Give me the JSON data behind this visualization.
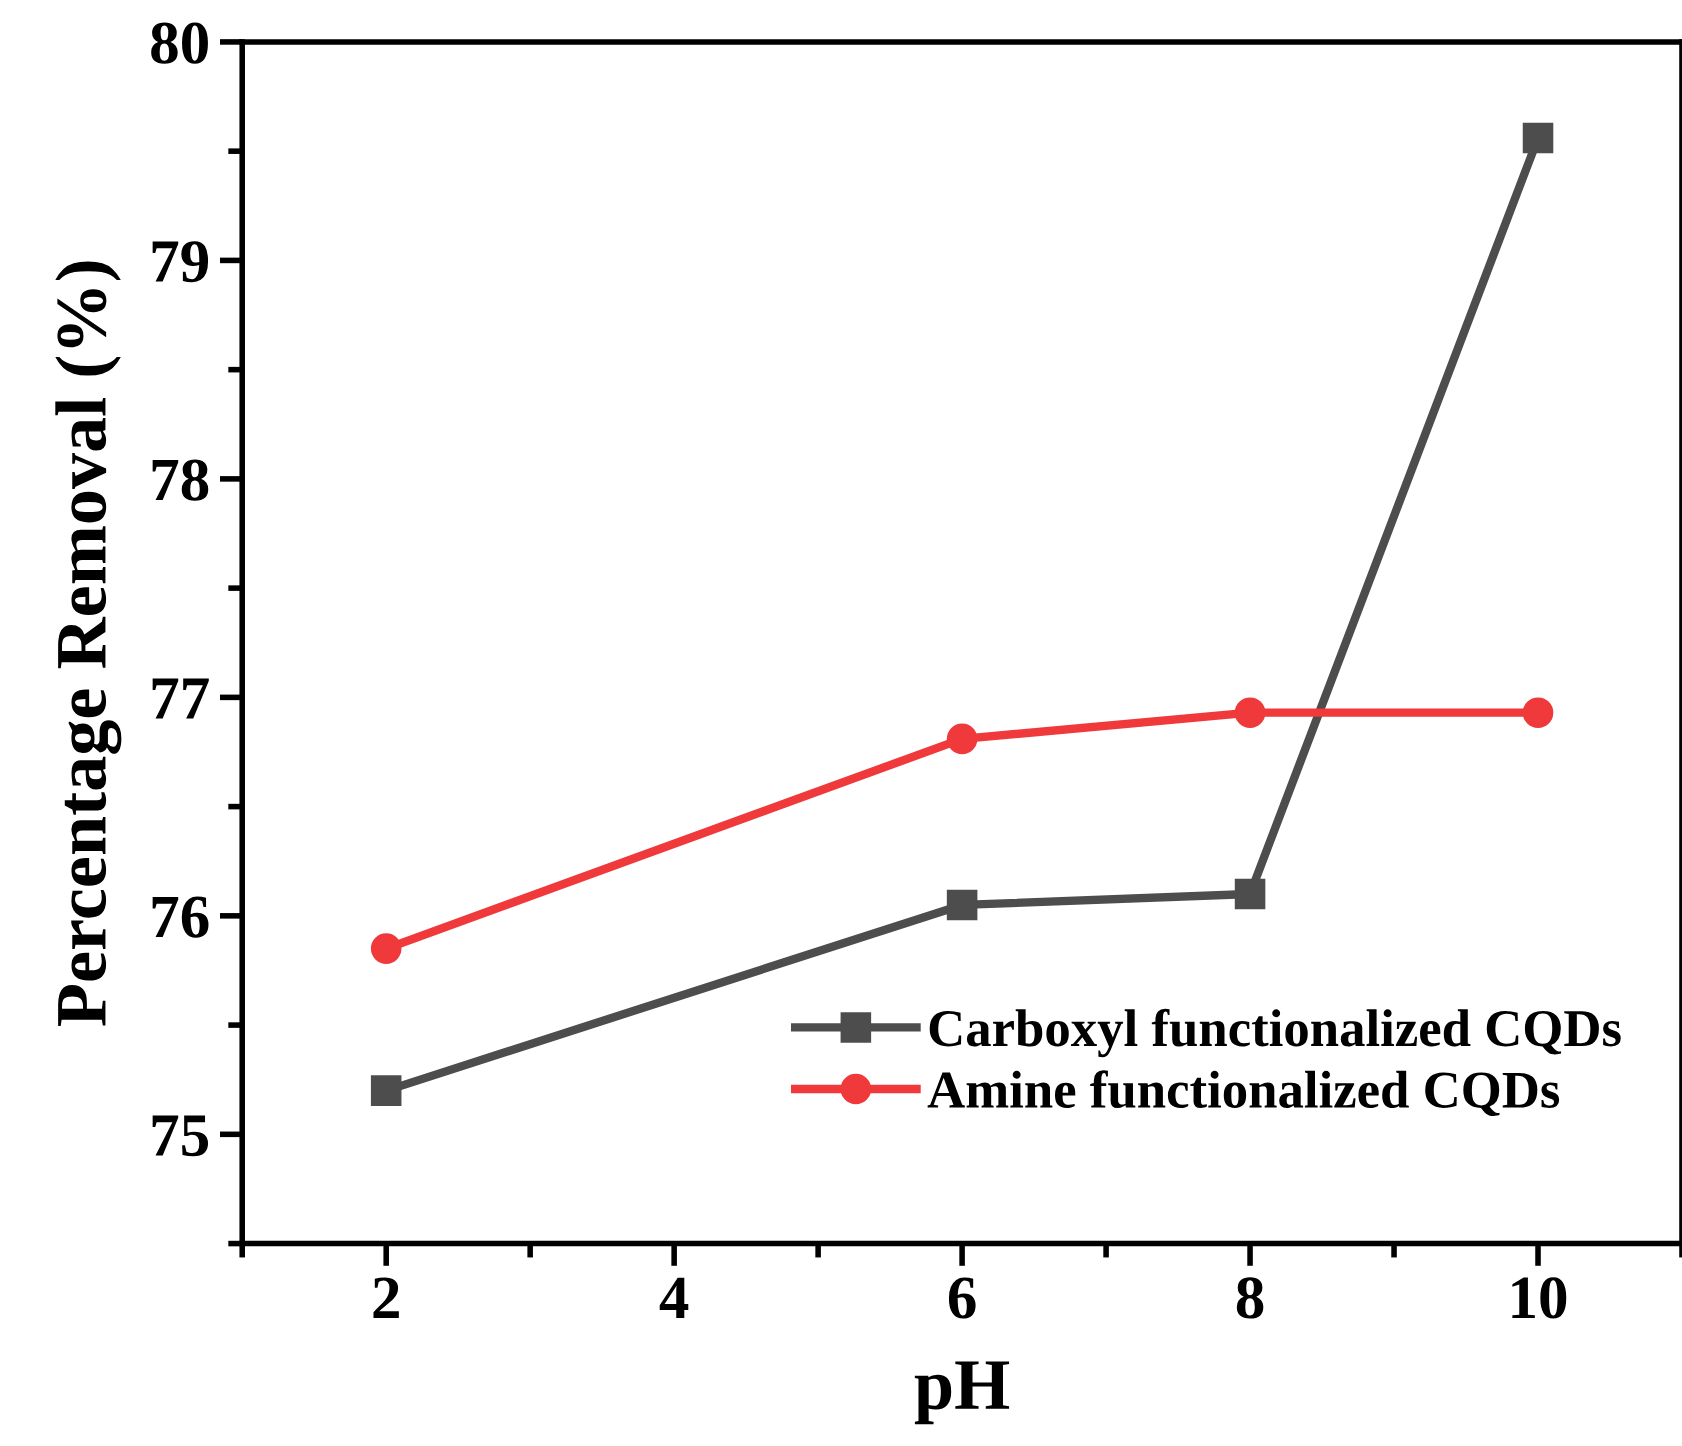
{
  "chart_data": {
    "type": "line",
    "xlabel": "pH",
    "ylabel": "Percentage Removal (%)",
    "x": [
      2,
      6,
      8,
      10
    ],
    "series": [
      {
        "name": "Carboxyl functionalized CQDs",
        "color": "#4d4d4d",
        "values": [
          75.2,
          76.05,
          76.1,
          79.56
        ],
        "marker": "square"
      },
      {
        "name": "Amine functionalized CQDs",
        "color": "#f0393b",
        "values": [
          75.85,
          76.81,
          76.93,
          76.93
        ],
        "marker": "circle"
      }
    ],
    "xlim": [
      1,
      11
    ],
    "xticks": [
      2,
      4,
      6,
      8,
      10
    ],
    "ylim": [
      74.5,
      80
    ],
    "yticks": [
      75,
      76,
      77,
      78,
      79,
      80
    ],
    "grid": false,
    "legend": "bottom right",
    "line_style": "solid"
  }
}
